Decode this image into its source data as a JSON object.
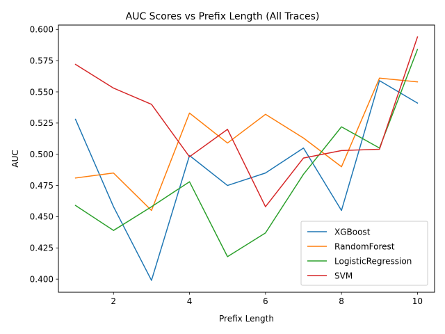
{
  "chart_data": {
    "type": "line",
    "title": "AUC Scores vs Prefix Length (All Traces)",
    "xlabel": "Prefix Length",
    "ylabel": "AUC",
    "xlim": [
      0.55,
      10.45
    ],
    "ylim": [
      0.3895,
      0.6035
    ],
    "x": [
      1,
      2,
      3,
      4,
      5,
      6,
      7,
      8,
      9,
      10
    ],
    "xticks": [
      2,
      4,
      6,
      8,
      10
    ],
    "yticks": [
      0.4,
      0.425,
      0.45,
      0.475,
      0.5,
      0.525,
      0.55,
      0.575,
      0.6
    ],
    "ytick_labels": [
      "0.400",
      "0.425",
      "0.450",
      "0.475",
      "0.500",
      "0.525",
      "0.550",
      "0.575",
      "0.600"
    ],
    "grid": false,
    "legend_position": "lower-right",
    "series": [
      {
        "name": "XGBoost",
        "color": "#1f77b4",
        "values": [
          0.528,
          0.458,
          0.399,
          0.499,
          0.475,
          0.485,
          0.505,
          0.455,
          0.559,
          0.541
        ]
      },
      {
        "name": "RandomForest",
        "color": "#ff7f0e",
        "values": [
          0.481,
          0.485,
          0.455,
          0.533,
          0.509,
          0.532,
          0.513,
          0.49,
          0.561,
          0.558
        ]
      },
      {
        "name": "LogisticRegression",
        "color": "#2ca02c",
        "values": [
          0.459,
          0.439,
          0.458,
          0.478,
          0.418,
          0.437,
          0.484,
          0.522,
          0.505,
          0.584
        ]
      },
      {
        "name": "SVM",
        "color": "#d62728",
        "values": [
          0.572,
          0.553,
          0.54,
          0.498,
          0.52,
          0.458,
          0.497,
          0.503,
          0.504,
          0.594
        ]
      }
    ]
  }
}
